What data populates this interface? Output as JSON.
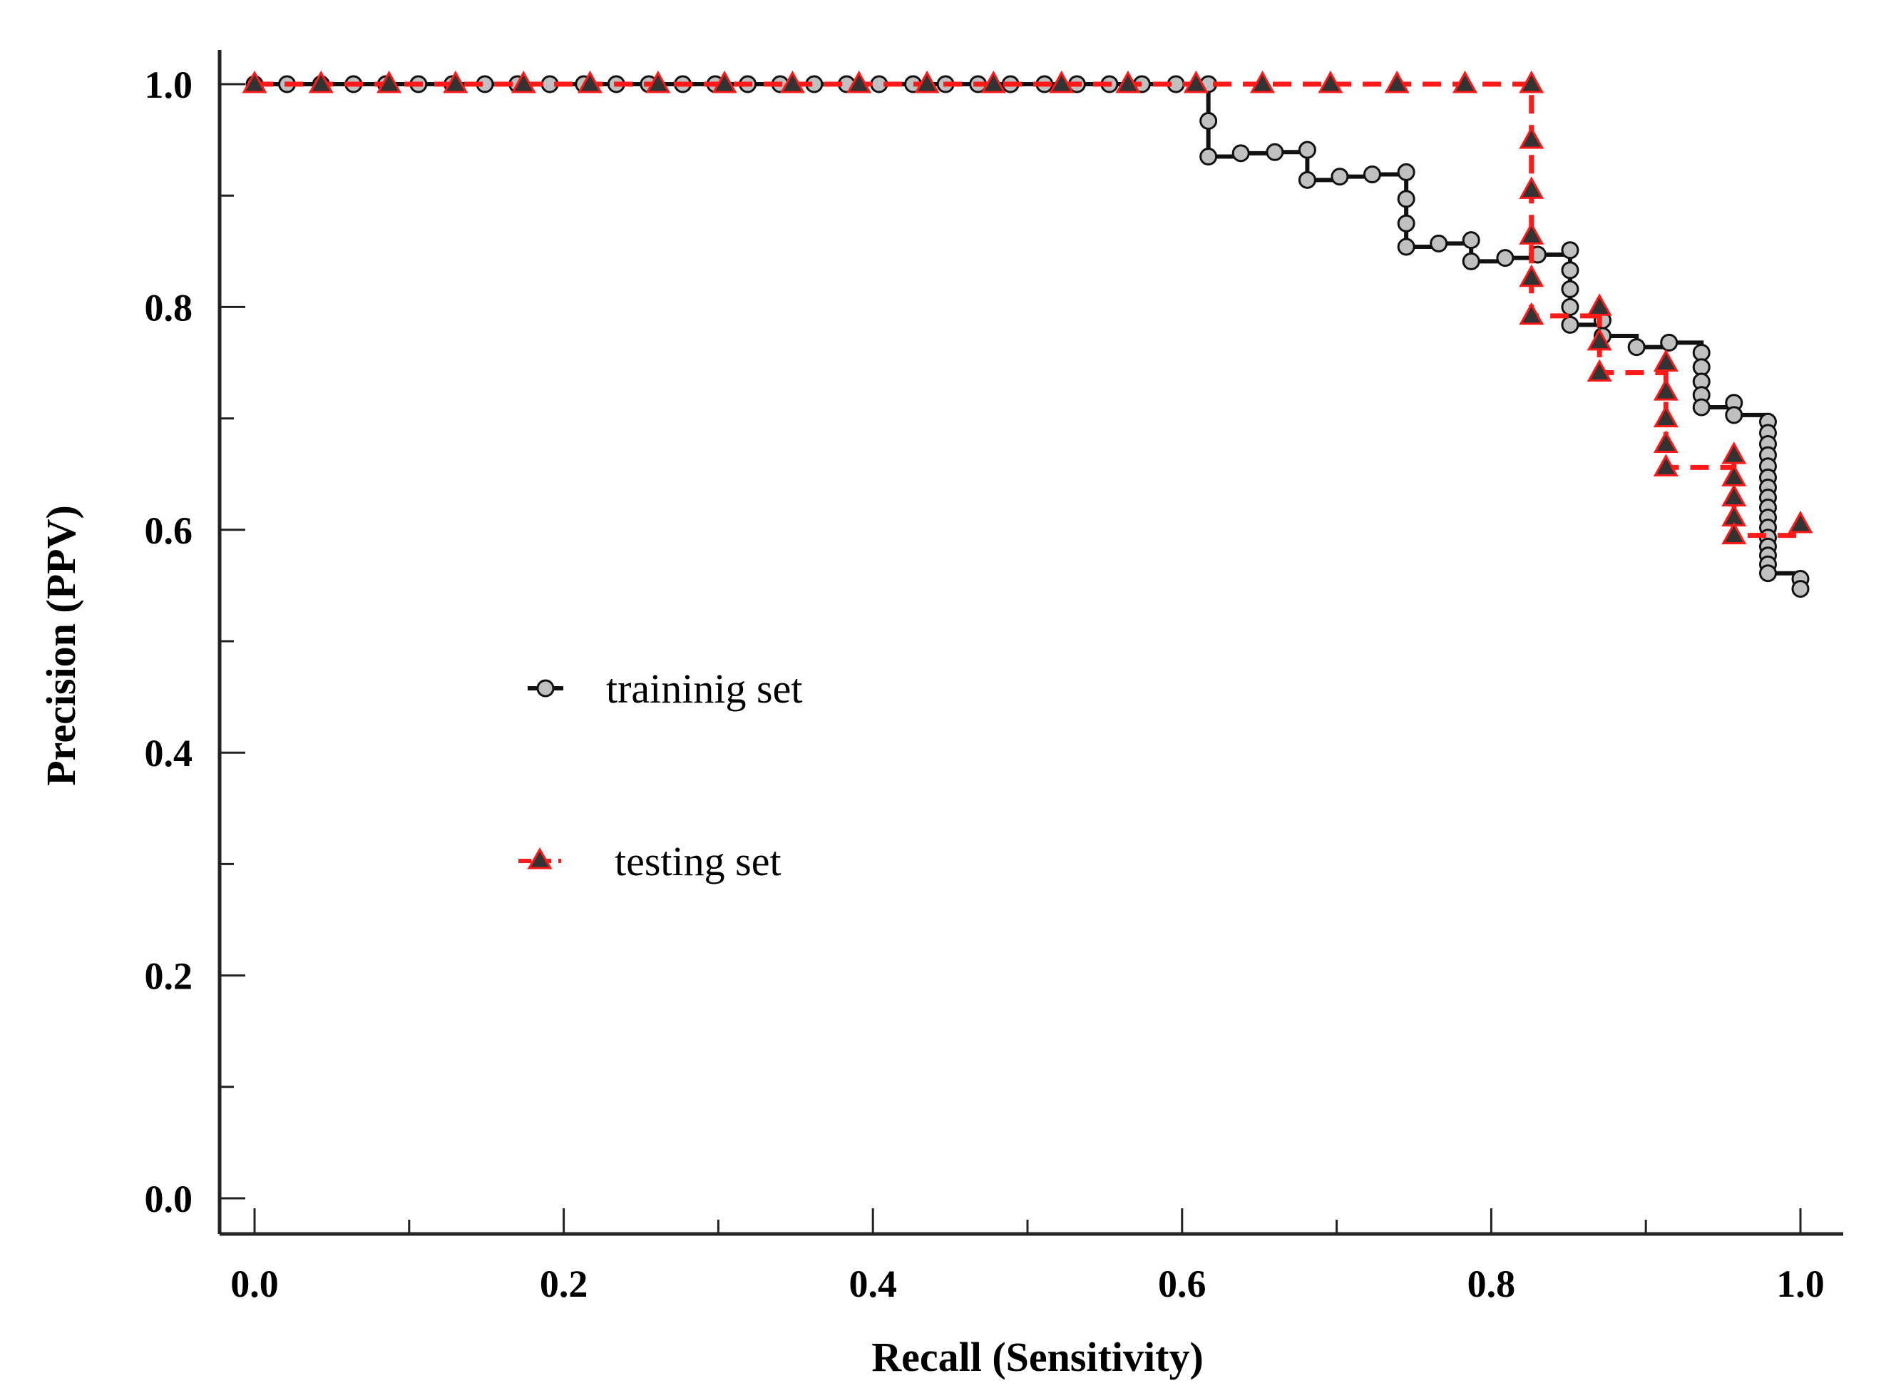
{
  "chart_data": {
    "type": "line",
    "title": "",
    "xlabel": "Recall (Sensitivity)",
    "ylabel": "Precision (PPV)",
    "xlim": [
      0.0,
      1.0
    ],
    "ylim": [
      0.0,
      1.0
    ],
    "xticks": [
      0.0,
      0.2,
      0.4,
      0.6,
      0.8,
      1.0
    ],
    "yticks": [
      0.0,
      0.2,
      0.4,
      0.6,
      0.8,
      1.0
    ],
    "xtick_labels": [
      "0.0",
      "0.2",
      "0.4",
      "0.6",
      "0.8",
      "1.0"
    ],
    "ytick_labels": [
      "0.0",
      "0.2",
      "0.4",
      "0.6",
      "0.8",
      "1.0"
    ],
    "grid": false,
    "legend_position": "center-left",
    "series": [
      {
        "name": "traininig set",
        "line_style": "solid",
        "line_color": "#111111",
        "marker": "circle",
        "marker_fill": "#c0c0c0",
        "x": [
          0.0,
          0.021,
          0.043,
          0.064,
          0.085,
          0.106,
          0.128,
          0.149,
          0.17,
          0.191,
          0.213,
          0.234,
          0.255,
          0.277,
          0.298,
          0.319,
          0.34,
          0.362,
          0.383,
          0.404,
          0.426,
          0.447,
          0.468,
          0.489,
          0.511,
          0.532,
          0.553,
          0.574,
          0.596,
          0.617,
          0.617,
          0.617,
          0.638,
          0.66,
          0.681,
          0.681,
          0.702,
          0.723,
          0.745,
          0.745,
          0.745,
          0.745,
          0.766,
          0.787,
          0.787,
          0.809,
          0.83,
          0.851,
          0.851,
          0.851,
          0.851,
          0.851,
          0.872,
          0.872,
          0.894,
          0.915,
          0.936,
          0.936,
          0.936,
          0.936,
          0.936,
          0.957,
          0.957,
          0.979,
          0.979,
          0.979,
          0.979,
          0.979,
          0.979,
          0.979,
          0.979,
          0.979,
          0.979,
          0.979,
          0.979,
          0.979,
          0.979,
          0.979,
          0.979,
          1.0,
          1.0
        ],
        "y": [
          1.0,
          1.0,
          1.0,
          1.0,
          1.0,
          1.0,
          1.0,
          1.0,
          1.0,
          1.0,
          1.0,
          1.0,
          1.0,
          1.0,
          1.0,
          1.0,
          1.0,
          1.0,
          1.0,
          1.0,
          1.0,
          1.0,
          1.0,
          1.0,
          1.0,
          1.0,
          1.0,
          1.0,
          1.0,
          1.0,
          0.967,
          0.935,
          0.938,
          0.939,
          0.941,
          0.914,
          0.917,
          0.919,
          0.921,
          0.897,
          0.875,
          0.854,
          0.857,
          0.86,
          0.841,
          0.844,
          0.847,
          0.851,
          0.833,
          0.816,
          0.8,
          0.784,
          0.788,
          0.774,
          0.764,
          0.768,
          0.759,
          0.746,
          0.733,
          0.721,
          0.71,
          0.714,
          0.703,
          0.697,
          0.687,
          0.677,
          0.667,
          0.657,
          0.647,
          0.638,
          0.629,
          0.62,
          0.611,
          0.602,
          0.593,
          0.585,
          0.577,
          0.569,
          0.561,
          0.556,
          0.547
        ]
      },
      {
        "name": "testing set",
        "line_style": "dashed",
        "line_color": "#ff1a1a",
        "marker": "triangle",
        "marker_fill": "#333333",
        "x": [
          0.0,
          0.043,
          0.087,
          0.13,
          0.174,
          0.217,
          0.261,
          0.304,
          0.348,
          0.391,
          0.435,
          0.478,
          0.522,
          0.565,
          0.609,
          0.652,
          0.696,
          0.739,
          0.783,
          0.826,
          0.826,
          0.826,
          0.826,
          0.826,
          0.826,
          0.87,
          0.87,
          0.87,
          0.913,
          0.913,
          0.913,
          0.913,
          0.913,
          0.957,
          0.957,
          0.957,
          0.957,
          0.957,
          1.0
        ],
        "y": [
          1.0,
          1.0,
          1.0,
          1.0,
          1.0,
          1.0,
          1.0,
          1.0,
          1.0,
          1.0,
          1.0,
          1.0,
          1.0,
          1.0,
          1.0,
          1.0,
          1.0,
          1.0,
          1.0,
          1.0,
          0.95,
          0.905,
          0.864,
          0.826,
          0.792,
          0.8,
          0.769,
          0.741,
          0.75,
          0.724,
          0.7,
          0.677,
          0.656,
          0.667,
          0.647,
          0.629,
          0.611,
          0.595,
          0.605
        ]
      }
    ]
  },
  "legend": {
    "items": [
      {
        "label": "traininig set"
      },
      {
        "label": "testing set"
      }
    ]
  }
}
